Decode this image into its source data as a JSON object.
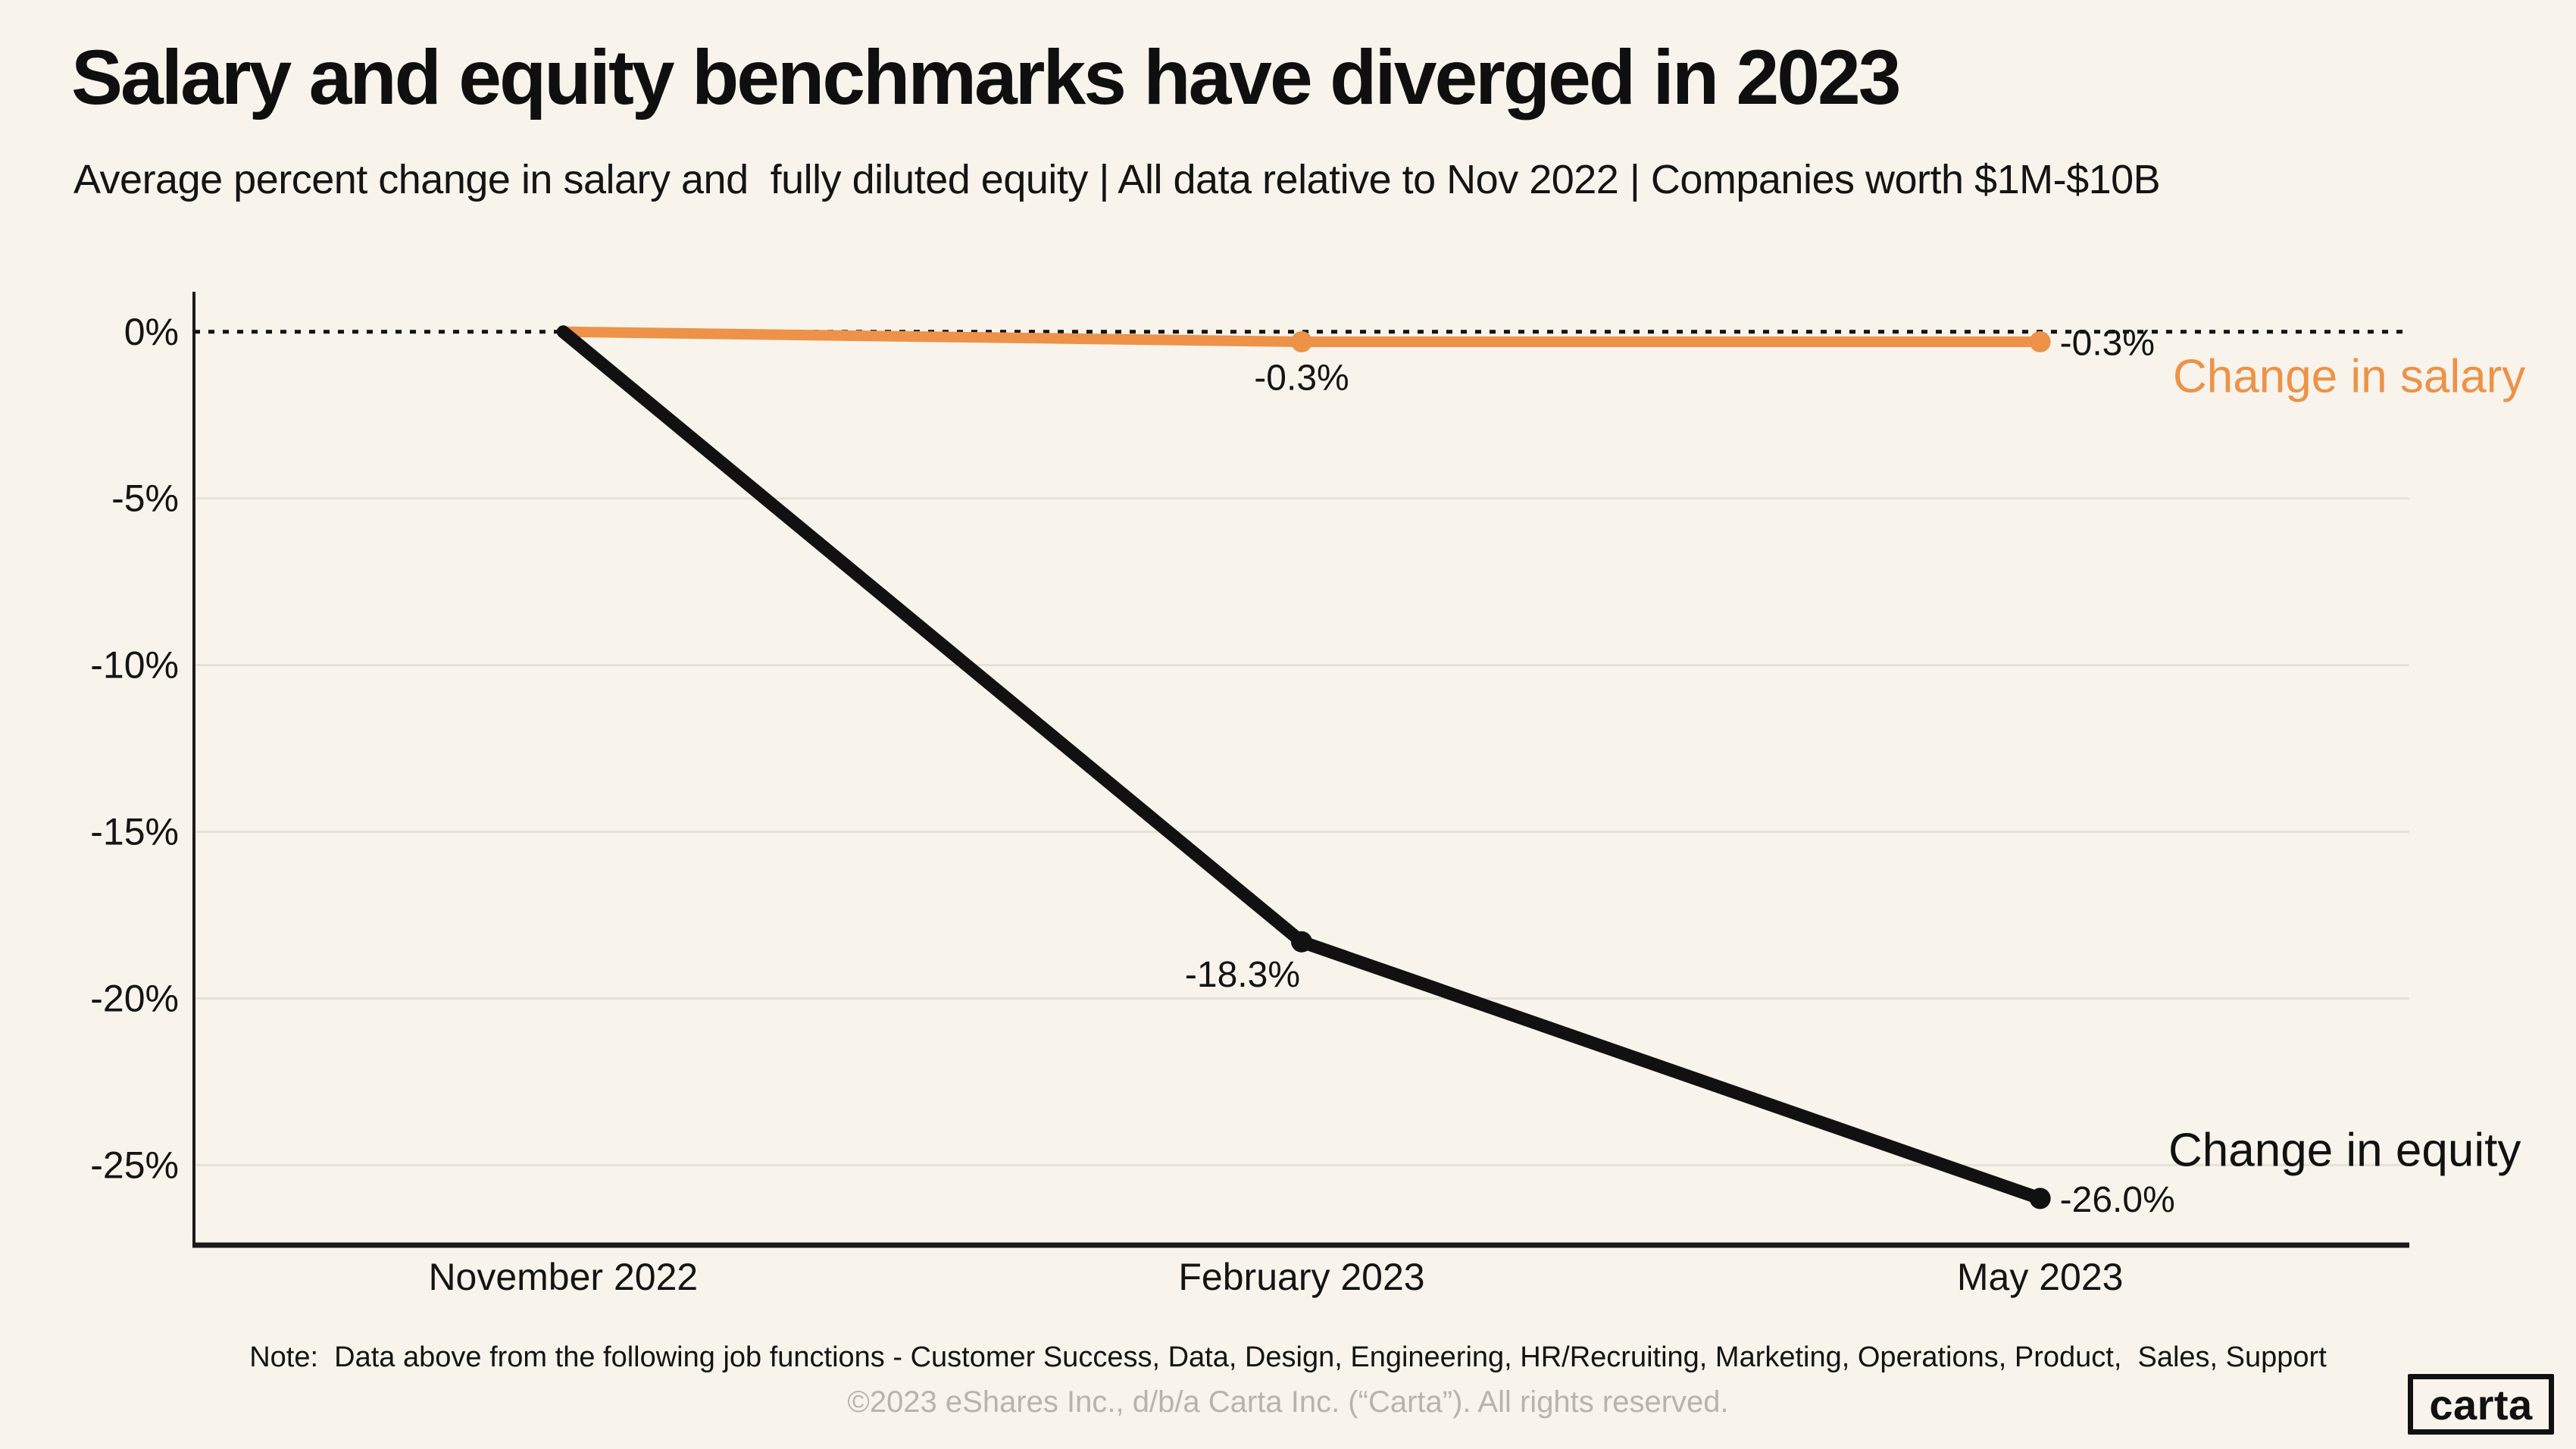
{
  "page": {
    "title": "Salary and equity benchmarks have diverged in 2023",
    "subtitle": "Average percent change in salary and  fully diluted equity | All data relative to Nov 2022 | Companies worth $1M-$10B",
    "note": "Note:  Data above from the following job functions - Customer Success, Data, Design, Engineering, HR/Recruiting, Marketing, Operations, Product,  Sales, Support",
    "copyright": "©2023 eShares Inc., d/b/a Carta Inc. (“Carta”). All rights reserved.",
    "logo_text": "carta",
    "colors": {
      "background": "#f8f4ec",
      "text": "#141414",
      "muted_text": "#b9b3a9",
      "grid": "#e6e1d7",
      "axis": "#1a1a1a",
      "zero_line": "#111111",
      "salary_orange": "#ed9248",
      "equity_black": "#111111"
    }
  },
  "chart_data": {
    "type": "line",
    "categories": [
      "November 2022",
      "February 2023",
      "May 2023"
    ],
    "series": [
      {
        "name": "Change in salary",
        "color": "#ed9248",
        "values": [
          0,
          -0.3,
          -0.3
        ],
        "point_labels": [
          "",
          "-0.3%",
          "-0.3%"
        ],
        "label_pos": [
          "",
          "below",
          "right"
        ]
      },
      {
        "name": "Change in equity",
        "color": "#111111",
        "values": [
          0,
          -18.3,
          -26.0
        ],
        "point_labels": [
          "",
          "-18.3%",
          "-26.0%"
        ],
        "label_pos": [
          "",
          "below-left",
          "right"
        ]
      }
    ],
    "yticks": [
      0,
      -5,
      -10,
      -15,
      -20,
      -25
    ],
    "ytick_labels": [
      "0%",
      "-5%",
      "-10%",
      "-15%",
      "-20%",
      "-25%"
    ],
    "ylim": [
      1.2,
      -27.4
    ],
    "zero_line_style": "dashed",
    "grid": "horizontal",
    "legend_position": "right-inline",
    "xlabel": "",
    "ylabel": ""
  }
}
